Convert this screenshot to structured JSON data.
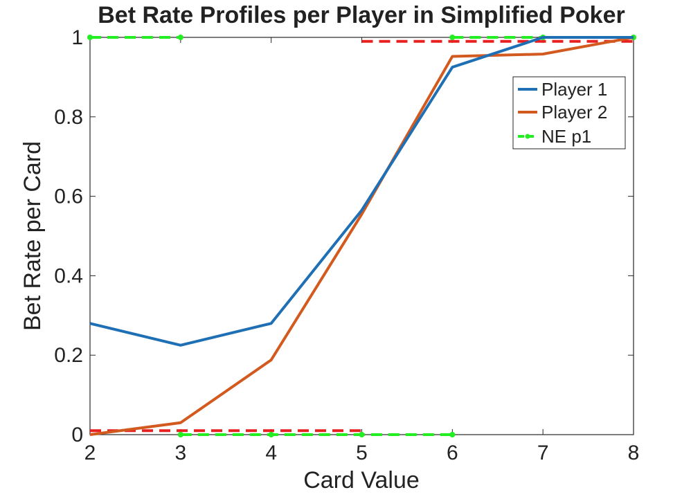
{
  "chart_data": {
    "type": "line",
    "title": "Bet Rate Profiles per Player in Simplified Poker",
    "xlabel": "Card Value",
    "ylabel": "Bet Rate per Card",
    "xlim": [
      2,
      8
    ],
    "ylim": [
      0,
      1
    ],
    "x_ticks": [
      "2",
      "3",
      "4",
      "5",
      "6",
      "7",
      "8"
    ],
    "y_ticks": [
      "0",
      "0.2",
      "0.4",
      "0.6",
      "0.8",
      "1"
    ],
    "grid": false,
    "legend_position": "top-right",
    "series": [
      {
        "name": "Player 1",
        "color": "#1f6fb4",
        "style": "solid",
        "x": [
          2,
          3,
          4,
          5,
          6,
          7,
          8
        ],
        "y": [
          0.28,
          0.225,
          0.28,
          0.565,
          0.925,
          1.0,
          1.0
        ]
      },
      {
        "name": "Player 2",
        "color": "#d35a1f",
        "style": "solid",
        "x": [
          2,
          3,
          4,
          5,
          6,
          7,
          8
        ],
        "y": [
          0.0,
          0.03,
          0.188,
          0.555,
          0.952,
          0.958,
          1.0
        ]
      },
      {
        "name": "NE p1",
        "color": "#22ee22",
        "style": "dashed-markers",
        "segments": [
          {
            "x": [
              2,
              3
            ],
            "y": [
              1.0,
              1.0
            ]
          },
          {
            "x": [
              3,
              4,
              5,
              6
            ],
            "y": [
              0.0,
              0.0,
              0.0,
              0.0
            ]
          },
          {
            "x": [
              6,
              7,
              8
            ],
            "y": [
              1.0,
              1.0,
              1.0
            ]
          }
        ]
      },
      {
        "color": "#e82020",
        "style": "dashed",
        "segments": [
          {
            "x": [
              2,
              5
            ],
            "y": [
              0.01,
              0.01
            ]
          },
          {
            "x": [
              5,
              8
            ],
            "y": [
              0.99,
              0.99
            ]
          }
        ]
      }
    ]
  }
}
